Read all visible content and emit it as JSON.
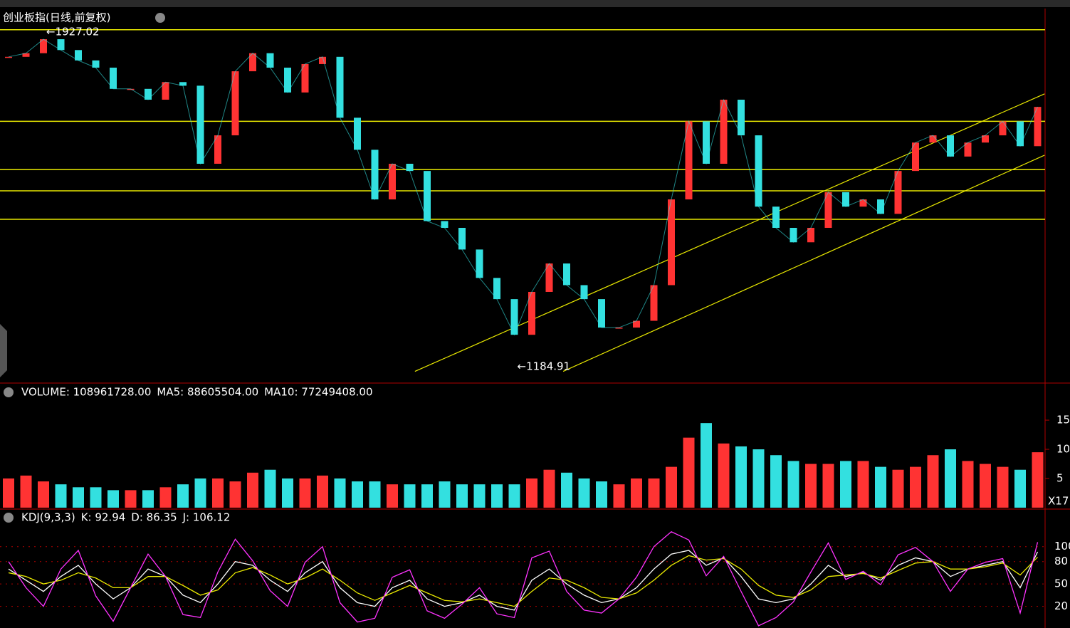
{
  "chart_data": [
    {
      "type": "line",
      "title": "创业板指(日线,前复权)",
      "color": "#33e0e0",
      "up_color": "#ff3333",
      "down_color": "#33e0e0",
      "ylim": [
        1149,
        1979
      ],
      "values": [
        1872,
        1880,
        1911,
        1887,
        1864,
        1848,
        1801,
        1801,
        1777,
        1816,
        1808,
        1635,
        1698,
        1840,
        1880,
        1848,
        1793,
        1856,
        1872,
        1737,
        1666,
        1556,
        1635,
        1619,
        1508,
        1493,
        1445,
        1382,
        1335,
        1256,
        1351,
        1414,
        1366,
        1335,
        1272,
        1272,
        1287,
        1366,
        1556,
        1729,
        1635,
        1777,
        1698,
        1540,
        1493,
        1461,
        1493,
        1572,
        1540,
        1556,
        1524,
        1619,
        1682,
        1698,
        1651,
        1682,
        1698,
        1729,
        1674,
        1761
      ],
      "annotations": [
        {
          "text": "←1927.02",
          "index": 2,
          "value": 1927.02
        },
        {
          "text": "←1184.91",
          "index": 29,
          "value": 1184.91
        }
      ],
      "hlines": [
        1932,
        1729,
        1622,
        1575,
        1512
      ],
      "hline_color": "#e8e800",
      "trendlines": [
        {
          "start": [
            23.3,
            1175
          ],
          "end": [
            59.4,
            1790
          ]
        },
        {
          "start": [
            31.8,
            1175
          ],
          "end": [
            59.4,
            1654
          ]
        }
      ]
    },
    {
      "type": "bar",
      "legend": [
        {
          "text": "VOLUME: 108961728.00",
          "color": "#ffffff"
        },
        {
          "text": "MA5: 88605504.00",
          "color": "#ffffff"
        },
        {
          "text": "MA10: 77249408.00",
          "color": "#e8e800"
        }
      ],
      "unit": "X17",
      "ylim": [
        0,
        20.5
      ],
      "yticks": [
        5,
        10,
        15
      ],
      "values": [
        5,
        5.5,
        4.5,
        4,
        3.5,
        3.5,
        3,
        3,
        3,
        3.5,
        4,
        5,
        5,
        4.5,
        6,
        6.5,
        5,
        5,
        5.5,
        5,
        4.5,
        4.5,
        4,
        4,
        4,
        4.5,
        4,
        4,
        4,
        4,
        5,
        6.5,
        6,
        5,
        4.5,
        4,
        5,
        5,
        7,
        12,
        14.5,
        11,
        10.5,
        10,
        9,
        8,
        7.5,
        7.5,
        8,
        8,
        7,
        6.5,
        7,
        9,
        10,
        8,
        7.5,
        7,
        6.5,
        9.5
      ]
    },
    {
      "type": "line",
      "legend": [
        {
          "text": "KDJ(9,3,3)",
          "color": "#ffffff"
        },
        {
          "text": "K: 92.94",
          "color": "#ffffff"
        },
        {
          "text": "D: 86.35",
          "color": "#e8e800"
        },
        {
          "text": "J: 106.12",
          "color": "#ff33ff"
        }
      ],
      "ylim": [
        -9,
        136
      ],
      "yticks": [
        20,
        50,
        80,
        100
      ],
      "series": [
        {
          "name": "K",
          "color": "#ffffff",
          "values": [
            70,
            55,
            40,
            60,
            75,
            50,
            30,
            45,
            70,
            60,
            35,
            25,
            50,
            80,
            75,
            55,
            40,
            65,
            80,
            45,
            25,
            20,
            45,
            55,
            30,
            20,
            25,
            35,
            20,
            15,
            55,
            70,
            50,
            35,
            25,
            30,
            45,
            70,
            90,
            95,
            75,
            85,
            60,
            30,
            25,
            30,
            50,
            75,
            60,
            65,
            55,
            75,
            85,
            80,
            60,
            70,
            75,
            80,
            45,
            93
          ]
        },
        {
          "name": "D",
          "color": "#e8e800",
          "values": [
            65,
            60,
            50,
            55,
            65,
            58,
            45,
            45,
            60,
            60,
            48,
            35,
            42,
            65,
            72,
            62,
            50,
            58,
            70,
            55,
            38,
            28,
            38,
            48,
            38,
            28,
            26,
            30,
            25,
            20,
            40,
            58,
            55,
            45,
            32,
            30,
            38,
            55,
            75,
            88,
            82,
            84,
            70,
            48,
            35,
            32,
            42,
            60,
            62,
            64,
            58,
            68,
            78,
            80,
            70,
            70,
            73,
            78,
            62,
            86
          ]
        },
        {
          "name": "J",
          "color": "#ff33ff",
          "values": [
            80,
            45,
            20,
            70,
            95,
            34,
            0,
            45,
            90,
            60,
            9,
            5,
            66,
            110,
            81,
            41,
            20,
            79,
            100,
            25,
            -1,
            4,
            59,
            69,
            14,
            4,
            23,
            45,
            10,
            5,
            85,
            94,
            40,
            15,
            11,
            30,
            59,
            100,
            120,
            109,
            61,
            87,
            40,
            -6,
            5,
            26,
            66,
            105,
            56,
            67,
            49,
            89,
            99,
            80,
            40,
            70,
            79,
            84,
            11,
            106
          ]
        }
      ]
    }
  ]
}
